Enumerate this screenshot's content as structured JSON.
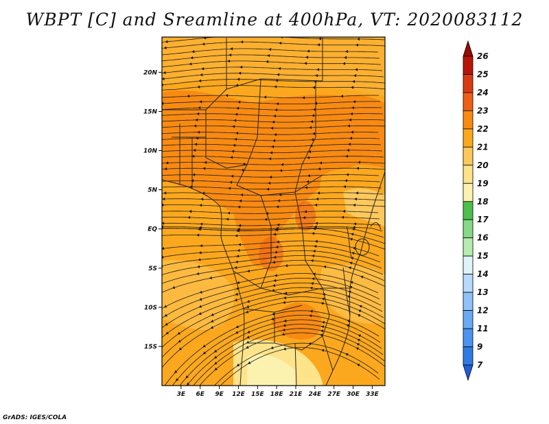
{
  "title": "WBPT [C] and Sreamline at 400hPa, VT: 2020083112",
  "credit": "GrADS: IGES/COLA",
  "map": {
    "lon_labels": [
      "3E",
      "6E",
      "9E",
      "12E",
      "15E",
      "18E",
      "21E",
      "24E",
      "27E",
      "30E",
      "33E"
    ],
    "lat_labels": [
      "20N",
      "15N",
      "10N",
      "5N",
      "EQ",
      "5S",
      "10S",
      "15S"
    ],
    "lon_range": [
      0,
      35
    ],
    "lat_range": [
      -20,
      24.5
    ],
    "lon_ticks": [
      3,
      6,
      9,
      12,
      15,
      18,
      21,
      24,
      27,
      30,
      33
    ],
    "lat_ticks": [
      20,
      15,
      10,
      5,
      0,
      -5,
      -10,
      -15
    ]
  },
  "colorbar": {
    "labels": [
      "7",
      "9",
      "11",
      "12",
      "13",
      "14",
      "15",
      "16",
      "17",
      "18",
      "19",
      "20",
      "21",
      "22",
      "23",
      "24",
      "25",
      "26"
    ],
    "colors": [
      "#1f5fd6",
      "#2f7be6",
      "#4b93f0",
      "#6aaaf5",
      "#8fc2f8",
      "#b6dafb",
      "#e0f3fb",
      "#b7ecb0",
      "#86d987",
      "#4cbf4c",
      "#fbf2b0",
      "#fde38a",
      "#fdc85c",
      "#fca81e",
      "#f88a12",
      "#ef5f14",
      "#d93b10",
      "#b81508",
      "#9a0a06"
    ]
  }
}
